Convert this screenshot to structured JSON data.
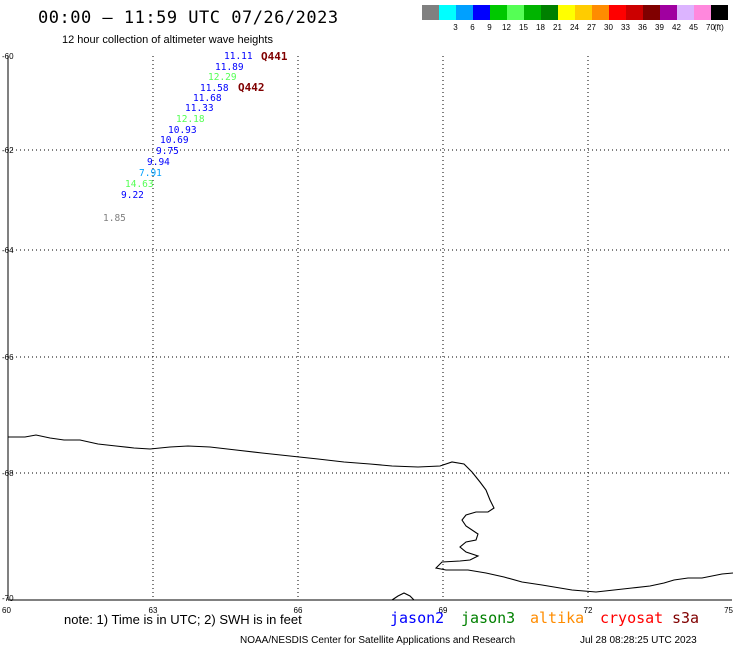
{
  "header": {
    "title": "00:00 – 11:59 UTC 07/26/2023",
    "subtitle": "12 hour collection of altimeter wave heights"
  },
  "legend": {
    "unit": "(ft)",
    "items": [
      {
        "label": "",
        "color": "#808080"
      },
      {
        "label": "3",
        "color": "#00ffff"
      },
      {
        "label": "6",
        "color": "#00a0ff"
      },
      {
        "label": "9",
        "color": "#0000ff"
      },
      {
        "label": "12",
        "color": "#00c800"
      },
      {
        "label": "15",
        "color": "#55ff55"
      },
      {
        "label": "18",
        "color": "#00b400"
      },
      {
        "label": "21",
        "color": "#008000"
      },
      {
        "label": "24",
        "color": "#ffff00"
      },
      {
        "label": "27",
        "color": "#ffcc00"
      },
      {
        "label": "30",
        "color": "#ff8c00"
      },
      {
        "label": "33",
        "color": "#ff0000"
      },
      {
        "label": "36",
        "color": "#cc0000"
      },
      {
        "label": "39",
        "color": "#800000"
      },
      {
        "label": "42",
        "color": "#a000a0"
      },
      {
        "label": "45",
        "color": "#dcb4ff"
      },
      {
        "label": "70",
        "color": "#ff88dd"
      },
      {
        "label": "",
        "color": "#000000"
      }
    ]
  },
  "map": {
    "lat_ticks": [
      "-60",
      "-62",
      "-64",
      "-66",
      "-68",
      "-70"
    ],
    "lon_ticks": [
      "60",
      "63",
      "66",
      "69",
      "72",
      "75"
    ],
    "passes": [
      "Q441",
      "Q442"
    ],
    "swh_labels": [
      {
        "value": "11.11",
        "color": "#0000ff"
      },
      {
        "value": "11.89",
        "color": "#0000ff"
      },
      {
        "value": "12.29",
        "color": "#55ff55"
      },
      {
        "value": "11.58",
        "color": "#0000ff"
      },
      {
        "value": "11.68",
        "color": "#0000ff"
      },
      {
        "value": "11.33",
        "color": "#0000ff"
      },
      {
        "value": "12.18",
        "color": "#55ff55"
      },
      {
        "value": "10.93",
        "color": "#0000ff"
      },
      {
        "value": "10.69",
        "color": "#0000ff"
      },
      {
        "value": "9.75",
        "color": "#0000ff"
      },
      {
        "value": "9.94",
        "color": "#0000ff"
      },
      {
        "value": "7.91",
        "color": "#00a0ff"
      },
      {
        "value": "14.63",
        "color": "#55ff55"
      },
      {
        "value": "9.22",
        "color": "#0000ff"
      },
      {
        "value": "1.85",
        "color": "#808080"
      }
    ]
  },
  "footer": {
    "note": "note: 1) Time is in UTC; 2) SWH is in feet",
    "satellites": [
      {
        "name": "jason2",
        "color": "#0000ff"
      },
      {
        "name": "jason3",
        "color": "#008000"
      },
      {
        "name": "altika",
        "color": "#ff8c00"
      },
      {
        "name": "cryosat",
        "color": "#ff0000"
      },
      {
        "name": "s3a",
        "color": "#800000"
      }
    ],
    "credit": "NOAA/NESDIS Center for Satellite Applications and Research",
    "timestamp": "Jul 28 08:28:25 UTC 2023"
  }
}
